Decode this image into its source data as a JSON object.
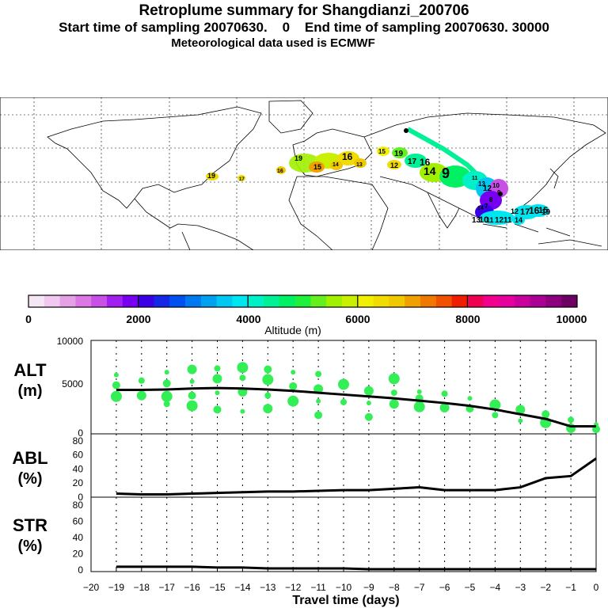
{
  "title": {
    "line1": "Retroplume summary for Shangdianzi_200706",
    "line2": "Start time of sampling 20070630.    0    End time of sampling 20070630. 30000",
    "line3": "Meteorological data used is ECMWF"
  },
  "map": {
    "description_labels": [
      "19",
      "17",
      "16",
      "19",
      "16",
      "15",
      "14",
      "13",
      "15",
      "12",
      "19",
      "17",
      "16",
      "14",
      "9",
      "11",
      "13",
      "12",
      "10",
      "9",
      "8",
      "7",
      "12",
      "11",
      "10",
      "17",
      "16",
      "15",
      "14",
      "19",
      "13",
      "11",
      "12",
      "14"
    ]
  },
  "colorbar": {
    "tick_labels": [
      "0",
      "2000",
      "4000",
      "6000",
      "8000",
      "10000"
    ],
    "title": "Altitude (m)",
    "colors": [
      "#f5e6f5",
      "#f0c8f0",
      "#e6a0e6",
      "#dc78e6",
      "#c850e6",
      "#a020f0",
      "#7800f0",
      "#3c00e6",
      "#1428e6",
      "#0050f0",
      "#0078f0",
      "#00a0f0",
      "#00c8f0",
      "#00e6f0",
      "#00f0c8",
      "#00f096",
      "#00f064",
      "#1ef03c",
      "#64f01e",
      "#a0f000",
      "#c8f000",
      "#f0f000",
      "#f0dc00",
      "#f0c800",
      "#f0a000",
      "#f07800",
      "#f05000",
      "#f01e00",
      "#f00050",
      "#f0008c",
      "#e6009c",
      "#c8009c",
      "#aa0096",
      "#8c0080",
      "#6e0064"
    ]
  },
  "chart_data": [
    {
      "type": "line",
      "panel": "ALT",
      "ylabel_line1": "ALT",
      "ylabel_line2": "(m)",
      "ylim": [
        0,
        10000
      ],
      "yticks": [
        "0",
        "5000",
        "10000"
      ],
      "x": [
        -19,
        -18,
        -17,
        -16,
        -15,
        -14,
        -13,
        -12,
        -11,
        -10,
        -9,
        -8,
        -7,
        -6,
        -5,
        -4,
        -3,
        -2,
        -1,
        0
      ],
      "mean_altitude": [
        4700,
        4700,
        4750,
        4850,
        4900,
        4850,
        4750,
        4600,
        4400,
        4200,
        4000,
        3800,
        3550,
        3300,
        3000,
        2600,
        2100,
        1600,
        800,
        800
      ],
      "scatter_points": [
        [
          -19,
          6300
        ],
        [
          -19,
          5200
        ],
        [
          -19,
          4000
        ],
        [
          -18,
          5700
        ],
        [
          -18,
          4100
        ],
        [
          -17,
          6600
        ],
        [
          -17,
          5400
        ],
        [
          -17,
          4000
        ],
        [
          -17,
          3200
        ],
        [
          -16,
          6900
        ],
        [
          -16,
          5600
        ],
        [
          -16,
          4100
        ],
        [
          -16,
          3000
        ],
        [
          -15,
          7000
        ],
        [
          -15,
          5900
        ],
        [
          -15,
          4400
        ],
        [
          -15,
          2600
        ],
        [
          -14,
          7100
        ],
        [
          -14,
          6000
        ],
        [
          -14,
          4500
        ],
        [
          -14,
          2400
        ],
        [
          -13,
          6900
        ],
        [
          -13,
          5800
        ],
        [
          -13,
          4100
        ],
        [
          -13,
          2700
        ],
        [
          -12,
          6600
        ],
        [
          -12,
          5100
        ],
        [
          -12,
          3500
        ],
        [
          -11,
          6400
        ],
        [
          -11,
          4800
        ],
        [
          -11,
          3500
        ],
        [
          -11,
          2000
        ],
        [
          -10,
          5300
        ],
        [
          -10,
          3400
        ],
        [
          -9,
          4600
        ],
        [
          -9,
          3300
        ],
        [
          -9,
          1800
        ],
        [
          -8,
          5900
        ],
        [
          -8,
          4400
        ],
        [
          -8,
          3200
        ],
        [
          -7,
          4500
        ],
        [
          -7,
          3800
        ],
        [
          -7,
          2900
        ],
        [
          -6,
          4300
        ],
        [
          -6,
          2800
        ],
        [
          -5,
          3800
        ],
        [
          -5,
          2700
        ],
        [
          -4,
          3100
        ],
        [
          -4,
          2000
        ],
        [
          -3,
          2600
        ],
        [
          -3,
          1400
        ],
        [
          -2,
          2100
        ],
        [
          -2,
          1200
        ],
        [
          -1,
          1500
        ],
        [
          -1,
          600
        ],
        [
          0,
          1000
        ],
        [
          0,
          500
        ]
      ]
    },
    {
      "type": "line",
      "panel": "ABL",
      "ylabel_line1": "ABL",
      "ylabel_line2": "(%)",
      "ylim": [
        0,
        90
      ],
      "yticks": [
        "0",
        "20",
        "40",
        "60",
        "80"
      ],
      "x": [
        -19,
        -18,
        -17,
        -16,
        -15,
        -14,
        -13,
        -12,
        -11,
        -10,
        -9,
        -8,
        -7,
        -6,
        -5,
        -4,
        -3,
        -2,
        -1,
        0
      ],
      "values": [
        5,
        4,
        4,
        5,
        6,
        7,
        8,
        8,
        9,
        10,
        10,
        12,
        14,
        10,
        10,
        10,
        14,
        27,
        30,
        55
      ]
    },
    {
      "type": "line",
      "panel": "STR",
      "ylabel_line1": "STR",
      "ylabel_line2": "(%)",
      "ylim": [
        0,
        90
      ],
      "yticks": [
        "0",
        "20",
        "40",
        "60",
        "80"
      ],
      "x": [
        -19,
        -18,
        -17,
        -16,
        -15,
        -14,
        -13,
        -12,
        -11,
        -10,
        -9,
        -8,
        -7,
        -6,
        -5,
        -4,
        -3,
        -2,
        -1,
        0
      ],
      "values": [
        4,
        4,
        4,
        4,
        3,
        3,
        2,
        2,
        2,
        2,
        1,
        1,
        1,
        1,
        1,
        1,
        1,
        1,
        1,
        1
      ]
    }
  ],
  "xaxis": {
    "ticks": [
      "−20",
      "−19",
      "−18",
      "−17",
      "−16",
      "−15",
      "−14",
      "−13",
      "−12",
      "−11",
      "−10",
      "−9",
      "−8",
      "−7",
      "−6",
      "−5",
      "−4",
      "−3",
      "−2",
      "−1",
      "0"
    ],
    "xlim": [
      -20,
      0
    ],
    "label": "Travel time (days)"
  }
}
